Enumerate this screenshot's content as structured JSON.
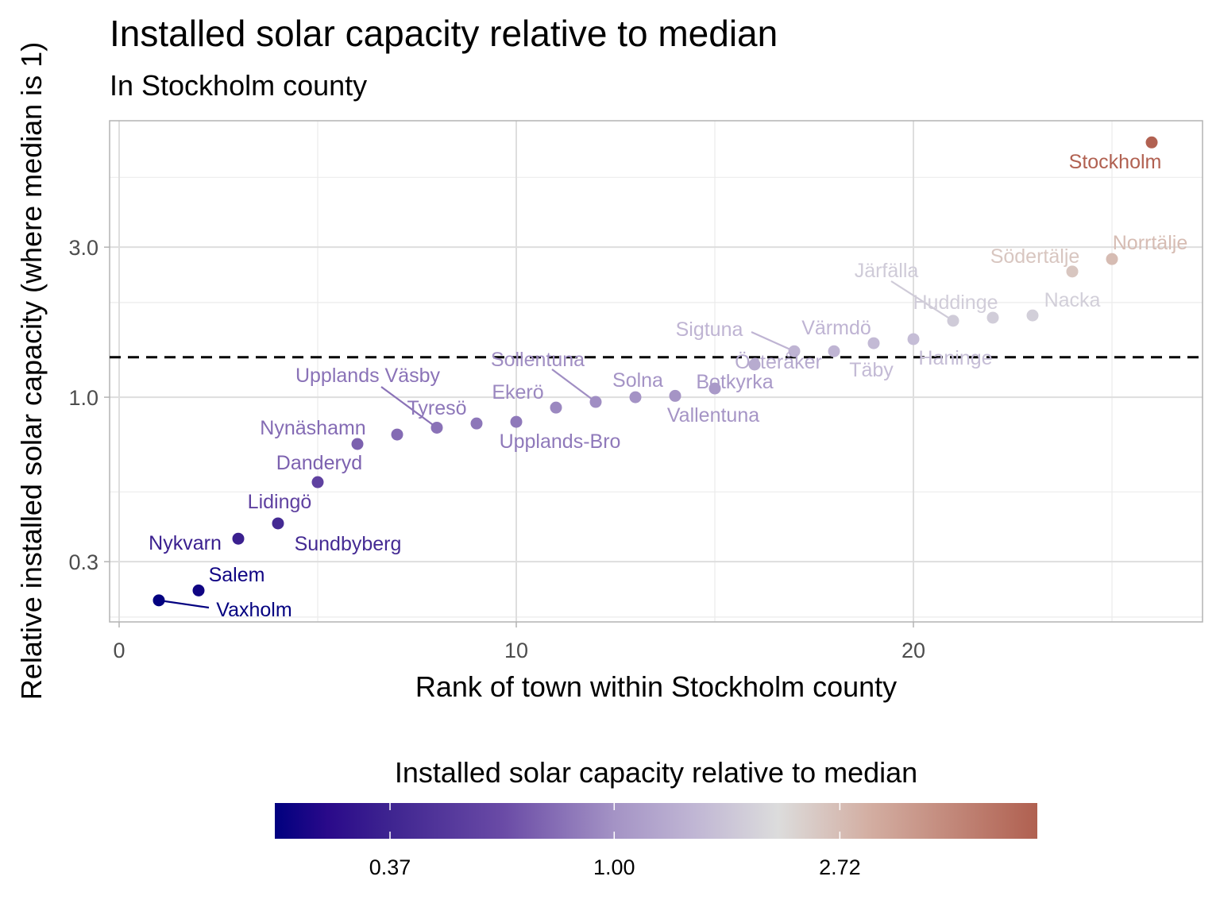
{
  "chart_data": {
    "type": "scatter",
    "title": "Installed solar capacity relative to median",
    "subtitle": "In Stockholm county",
    "xlabel": "Rank of town within Stockholm county",
    "ylabel": "Relative installed solar capacity (where median is 1)",
    "xlim": [
      -0.24,
      27.28
    ],
    "ylim": [
      0.193,
      7.57
    ],
    "y_scale": "log10",
    "x_ticks": [
      0,
      10,
      20
    ],
    "x_tick_labels": [
      "0",
      "10",
      "20"
    ],
    "y_ticks": [
      0.3,
      1.0,
      3.0
    ],
    "y_tick_labels": [
      "0.3",
      "1.0",
      "3.0"
    ],
    "grid": true,
    "reference_line": {
      "y": 1.34,
      "style": "dashed",
      "color": "#000000"
    },
    "points": [
      {
        "label": "Vaxholm",
        "x": 1,
        "y": 0.226
      },
      {
        "label": "Salem",
        "x": 2,
        "y": 0.243
      },
      {
        "label": "Nykvarn",
        "x": 3,
        "y": 0.355
      },
      {
        "label": "Sundbyberg",
        "x": 4,
        "y": 0.397
      },
      {
        "label": "Lidingö",
        "x": 5,
        "y": 0.537
      },
      {
        "label": "Danderyd",
        "x": 6,
        "y": 0.71
      },
      {
        "label": "Nynäshamn",
        "x": 7,
        "y": 0.761
      },
      {
        "label": "Upplands Väsby",
        "x": 8,
        "y": 0.8
      },
      {
        "label": "Tyresö",
        "x": 9,
        "y": 0.825
      },
      {
        "label": "Upplands-Bro",
        "x": 10,
        "y": 0.835
      },
      {
        "label": "Ekerö",
        "x": 11,
        "y": 0.927
      },
      {
        "label": "Sollentuna",
        "x": 12,
        "y": 0.966
      },
      {
        "label": "Solna",
        "x": 13,
        "y": 1.0
      },
      {
        "label": "Vallentuna",
        "x": 14,
        "y": 1.01
      },
      {
        "label": "Botkyrka",
        "x": 15,
        "y": 1.066
      },
      {
        "label": "Österåker",
        "x": 16,
        "y": 1.27
      },
      {
        "label": "Sigtuna",
        "x": 17,
        "y": 1.4
      },
      {
        "label": "Värmdö",
        "x": 18,
        "y": 1.4
      },
      {
        "label": "Täby",
        "x": 19,
        "y": 1.485
      },
      {
        "label": "Haninge",
        "x": 20,
        "y": 1.53
      },
      {
        "label": "Järfälla",
        "x": 21,
        "y": 1.75
      },
      {
        "label": "Huddinge",
        "x": 22,
        "y": 1.79
      },
      {
        "label": "Nacka",
        "x": 23,
        "y": 1.82
      },
      {
        "label": "Södertälje",
        "x": 24,
        "y": 2.51
      },
      {
        "label": "Norrtälje",
        "x": 25,
        "y": 2.75
      },
      {
        "label": "Stockholm",
        "x": 26,
        "y": 6.46
      }
    ],
    "legend": {
      "title": "Installed solar capacity relative to median",
      "placement": "bottom",
      "scale": "log",
      "ticks": [
        0.37,
        1.0,
        2.72
      ],
      "tick_labels": [
        "0.37",
        "1.00",
        "2.72"
      ],
      "colors": [
        "#00007f",
        "#2a0a8a",
        "#a493c5",
        "#dcdcdc",
        "#b06050"
      ]
    }
  }
}
